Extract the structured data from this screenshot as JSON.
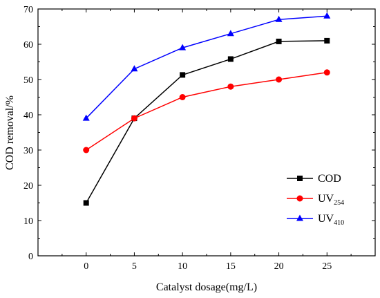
{
  "chart_data": {
    "type": "line",
    "x": [
      0,
      5,
      10,
      15,
      20,
      25
    ],
    "xlabel": "Catalyst dosage(mg/L)",
    "ylabel": "COD removal/%",
    "xlim": [
      -5,
      30
    ],
    "ylim": [
      0,
      70
    ],
    "xticks": [
      0,
      5,
      10,
      15,
      20,
      25
    ],
    "yticks": [
      0,
      10,
      20,
      30,
      40,
      50,
      60,
      70
    ],
    "grid": false,
    "legend_position": "bottom-right",
    "series": [
      {
        "name": "COD",
        "name_main": "COD",
        "name_sub": "",
        "color": "#000000",
        "marker": "square",
        "values": [
          15,
          39,
          51.3,
          55.8,
          60.8,
          61
        ]
      },
      {
        "name": "UV254",
        "name_main": "UV",
        "name_sub": "254",
        "color": "#ff0000",
        "marker": "circle",
        "values": [
          30,
          39,
          45,
          48,
          50,
          52
        ]
      },
      {
        "name": "UV410",
        "name_main": "UV",
        "name_sub": "410",
        "color": "#0000ff",
        "marker": "triangle",
        "values": [
          39,
          53,
          59,
          63,
          67,
          68
        ]
      }
    ]
  }
}
